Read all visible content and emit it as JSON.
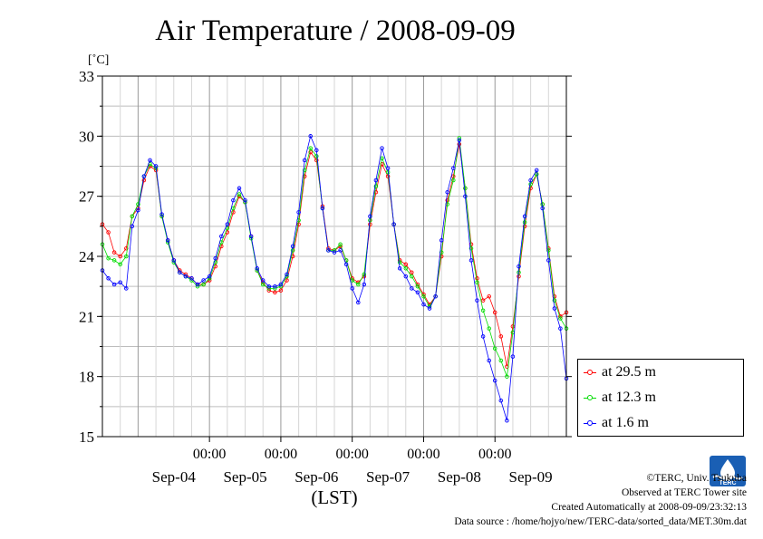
{
  "chart_data": {
    "type": "line",
    "title": "Air Temperature / 2008-09-09",
    "unit_label": "[˚C]",
    "xlabel": "(LST)",
    "ylim": [
      15,
      33
    ],
    "yticks": [
      "15",
      "18",
      "21",
      "24",
      "27",
      "30",
      "33"
    ],
    "x_range_days": [
      "2008-09-03 12:00",
      "2008-09-10 00:00"
    ],
    "x_time_ticks": [
      {
        "time": "2008-09-05 00:00",
        "label": "00:00"
      },
      {
        "time": "2008-09-06 00:00",
        "label": "00:00"
      },
      {
        "time": "2008-09-07 00:00",
        "label": "00:00"
      },
      {
        "time": "2008-09-08 00:00",
        "label": "00:00"
      },
      {
        "time": "2008-09-09 00:00",
        "label": "00:00"
      }
    ],
    "x_date_labels": [
      {
        "time": "2008-09-04 12:00",
        "label": "Sep-04"
      },
      {
        "time": "2008-09-05 12:00",
        "label": "Sep-05"
      },
      {
        "time": "2008-09-06 12:00",
        "label": "Sep-06"
      },
      {
        "time": "2008-09-07 12:00",
        "label": "Sep-07"
      },
      {
        "time": "2008-09-08 12:00",
        "label": "Sep-08"
      },
      {
        "time": "2008-09-09 12:00",
        "label": "Sep-09"
      }
    ],
    "grid": true,
    "legend_position": "bottom-right, outside plot",
    "series": [
      {
        "name": "at 29.5 m",
        "color": "#ff0000",
        "points": [
          [
            "2008-09-03 12:00",
            25.6
          ],
          [
            "2008-09-03 14:00",
            25.2
          ],
          [
            "2008-09-03 16:00",
            24.2
          ],
          [
            "2008-09-03 18:00",
            24.0
          ],
          [
            "2008-09-03 20:00",
            24.4
          ],
          [
            "2008-09-03 22:00",
            26.0
          ],
          [
            "2008-09-04 00:00",
            26.4
          ],
          [
            "2008-09-04 02:00",
            27.8
          ],
          [
            "2008-09-04 04:00",
            28.5
          ],
          [
            "2008-09-04 06:00",
            28.3
          ],
          [
            "2008-09-04 08:00",
            26.0
          ],
          [
            "2008-09-04 10:00",
            24.8
          ],
          [
            "2008-09-04 12:00",
            23.8
          ],
          [
            "2008-09-04 14:00",
            23.3
          ],
          [
            "2008-09-04 16:00",
            23.1
          ],
          [
            "2008-09-04 18:00",
            22.9
          ],
          [
            "2008-09-04 20:00",
            22.6
          ],
          [
            "2008-09-04 22:00",
            22.6
          ],
          [
            "2008-09-05 00:00",
            22.8
          ],
          [
            "2008-09-05 02:00",
            23.5
          ],
          [
            "2008-09-05 04:00",
            24.5
          ],
          [
            "2008-09-05 06:00",
            25.2
          ],
          [
            "2008-09-05 08:00",
            26.2
          ],
          [
            "2008-09-05 10:00",
            27.0
          ],
          [
            "2008-09-05 12:00",
            26.7
          ],
          [
            "2008-09-05 14:00",
            25.0
          ],
          [
            "2008-09-05 16:00",
            23.3
          ],
          [
            "2008-09-05 18:00",
            22.7
          ],
          [
            "2008-09-05 20:00",
            22.3
          ],
          [
            "2008-09-05 22:00",
            22.2
          ],
          [
            "2008-09-06 00:00",
            22.3
          ],
          [
            "2008-09-06 02:00",
            22.8
          ],
          [
            "2008-09-06 04:00",
            24.0
          ],
          [
            "2008-09-06 06:00",
            25.6
          ],
          [
            "2008-09-06 08:00",
            28.0
          ],
          [
            "2008-09-06 10:00",
            29.2
          ],
          [
            "2008-09-06 12:00",
            28.8
          ],
          [
            "2008-09-06 14:00",
            26.5
          ],
          [
            "2008-09-06 16:00",
            24.4
          ],
          [
            "2008-09-06 18:00",
            24.3
          ],
          [
            "2008-09-06 20:00",
            24.5
          ],
          [
            "2008-09-06 22:00",
            23.8
          ],
          [
            "2008-09-07 00:00",
            22.9
          ],
          [
            "2008-09-07 02:00",
            22.7
          ],
          [
            "2008-09-07 04:00",
            23.0
          ],
          [
            "2008-09-07 06:00",
            25.6
          ],
          [
            "2008-09-07 08:00",
            27.2
          ],
          [
            "2008-09-07 10:00",
            28.6
          ],
          [
            "2008-09-07 12:00",
            28.0
          ],
          [
            "2008-09-07 14:00",
            25.6
          ],
          [
            "2008-09-07 16:00",
            23.8
          ],
          [
            "2008-09-07 18:00",
            23.6
          ],
          [
            "2008-09-07 20:00",
            23.2
          ],
          [
            "2008-09-07 22:00",
            22.6
          ],
          [
            "2008-09-08 00:00",
            22.1
          ],
          [
            "2008-09-08 02:00",
            21.6
          ],
          [
            "2008-09-08 04:00",
            22.0
          ],
          [
            "2008-09-08 06:00",
            24.0
          ],
          [
            "2008-09-08 08:00",
            26.8
          ],
          [
            "2008-09-08 10:00",
            28.0
          ],
          [
            "2008-09-08 12:00",
            29.6
          ],
          [
            "2008-09-08 14:00",
            27.4
          ],
          [
            "2008-09-08 16:00",
            24.6
          ],
          [
            "2008-09-08 18:00",
            22.9
          ],
          [
            "2008-09-08 20:00",
            21.8
          ],
          [
            "2008-09-08 22:00",
            22.0
          ],
          [
            "2008-09-09 00:00",
            21.2
          ],
          [
            "2008-09-09 02:00",
            20.0
          ],
          [
            "2008-09-09 04:00",
            18.5
          ],
          [
            "2008-09-09 06:00",
            20.5
          ],
          [
            "2008-09-09 08:00",
            23.0
          ],
          [
            "2008-09-09 10:00",
            25.5
          ],
          [
            "2008-09-09 12:00",
            27.4
          ],
          [
            "2008-09-09 14:00",
            28.1
          ],
          [
            "2008-09-09 16:00",
            26.6
          ],
          [
            "2008-09-09 18:00",
            24.4
          ],
          [
            "2008-09-09 20:00",
            22.0
          ],
          [
            "2008-09-09 22:00",
            21.0
          ],
          [
            "2008-09-10 00:00",
            21.2
          ]
        ]
      },
      {
        "name": "at 12.3 m",
        "color": "#00dd00",
        "points": [
          [
            "2008-09-03 12:00",
            24.6
          ],
          [
            "2008-09-03 14:00",
            23.9
          ],
          [
            "2008-09-03 16:00",
            23.8
          ],
          [
            "2008-09-03 18:00",
            23.6
          ],
          [
            "2008-09-03 20:00",
            24.0
          ],
          [
            "2008-09-03 22:00",
            26.0
          ],
          [
            "2008-09-04 00:00",
            26.6
          ],
          [
            "2008-09-04 02:00",
            28.0
          ],
          [
            "2008-09-04 04:00",
            28.6
          ],
          [
            "2008-09-04 06:00",
            28.4
          ],
          [
            "2008-09-04 08:00",
            26.0
          ],
          [
            "2008-09-04 10:00",
            24.7
          ],
          [
            "2008-09-04 12:00",
            23.7
          ],
          [
            "2008-09-04 14:00",
            23.2
          ],
          [
            "2008-09-04 16:00",
            23.0
          ],
          [
            "2008-09-04 18:00",
            22.8
          ],
          [
            "2008-09-04 20:00",
            22.5
          ],
          [
            "2008-09-04 22:00",
            22.6
          ],
          [
            "2008-09-05 00:00",
            22.9
          ],
          [
            "2008-09-05 02:00",
            23.7
          ],
          [
            "2008-09-05 04:00",
            24.7
          ],
          [
            "2008-09-05 06:00",
            25.4
          ],
          [
            "2008-09-05 08:00",
            26.4
          ],
          [
            "2008-09-05 10:00",
            27.1
          ],
          [
            "2008-09-05 12:00",
            26.7
          ],
          [
            "2008-09-05 14:00",
            24.9
          ],
          [
            "2008-09-05 16:00",
            23.3
          ],
          [
            "2008-09-05 18:00",
            22.6
          ],
          [
            "2008-09-05 20:00",
            22.4
          ],
          [
            "2008-09-05 22:00",
            22.4
          ],
          [
            "2008-09-06 00:00",
            22.5
          ],
          [
            "2008-09-06 02:00",
            23.0
          ],
          [
            "2008-09-06 04:00",
            24.3
          ],
          [
            "2008-09-06 06:00",
            25.8
          ],
          [
            "2008-09-06 08:00",
            28.3
          ],
          [
            "2008-09-06 10:00",
            29.4
          ],
          [
            "2008-09-06 12:00",
            29.0
          ],
          [
            "2008-09-06 14:00",
            26.4
          ],
          [
            "2008-09-06 16:00",
            24.3
          ],
          [
            "2008-09-06 18:00",
            24.3
          ],
          [
            "2008-09-06 20:00",
            24.6
          ],
          [
            "2008-09-06 22:00",
            23.8
          ],
          [
            "2008-09-07 00:00",
            22.8
          ],
          [
            "2008-09-07 02:00",
            22.6
          ],
          [
            "2008-09-07 04:00",
            23.1
          ],
          [
            "2008-09-07 06:00",
            25.8
          ],
          [
            "2008-09-07 08:00",
            27.5
          ],
          [
            "2008-09-07 10:00",
            28.9
          ],
          [
            "2008-09-07 12:00",
            28.2
          ],
          [
            "2008-09-07 14:00",
            25.6
          ],
          [
            "2008-09-07 16:00",
            23.7
          ],
          [
            "2008-09-07 18:00",
            23.4
          ],
          [
            "2008-09-07 20:00",
            23.0
          ],
          [
            "2008-09-07 22:00",
            22.5
          ],
          [
            "2008-09-08 00:00",
            22.0
          ],
          [
            "2008-09-08 02:00",
            21.5
          ],
          [
            "2008-09-08 04:00",
            22.0
          ],
          [
            "2008-09-08 06:00",
            24.2
          ],
          [
            "2008-09-08 08:00",
            26.6
          ],
          [
            "2008-09-08 10:00",
            27.8
          ],
          [
            "2008-09-08 12:00",
            29.9
          ],
          [
            "2008-09-08 14:00",
            27.4
          ],
          [
            "2008-09-08 16:00",
            24.4
          ],
          [
            "2008-09-08 18:00",
            22.7
          ],
          [
            "2008-09-08 20:00",
            21.3
          ],
          [
            "2008-09-08 22:00",
            20.4
          ],
          [
            "2008-09-09 00:00",
            19.4
          ],
          [
            "2008-09-09 02:00",
            18.8
          ],
          [
            "2008-09-09 04:00",
            18.0
          ],
          [
            "2008-09-09 06:00",
            20.2
          ],
          [
            "2008-09-09 08:00",
            23.2
          ],
          [
            "2008-09-09 10:00",
            25.7
          ],
          [
            "2008-09-09 12:00",
            27.6
          ],
          [
            "2008-09-09 14:00",
            28.1
          ],
          [
            "2008-09-09 16:00",
            26.6
          ],
          [
            "2008-09-09 18:00",
            24.3
          ],
          [
            "2008-09-09 20:00",
            21.8
          ],
          [
            "2008-09-09 22:00",
            20.9
          ],
          [
            "2008-09-10 00:00",
            20.4
          ]
        ]
      },
      {
        "name": "at 1.6 m",
        "color": "#0000ff",
        "points": [
          [
            "2008-09-03 12:00",
            23.3
          ],
          [
            "2008-09-03 14:00",
            22.9
          ],
          [
            "2008-09-03 16:00",
            22.6
          ],
          [
            "2008-09-03 18:00",
            22.7
          ],
          [
            "2008-09-03 20:00",
            22.4
          ],
          [
            "2008-09-03 22:00",
            25.5
          ],
          [
            "2008-09-04 00:00",
            26.3
          ],
          [
            "2008-09-04 02:00",
            28.0
          ],
          [
            "2008-09-04 04:00",
            28.8
          ],
          [
            "2008-09-04 06:00",
            28.5
          ],
          [
            "2008-09-04 08:00",
            26.1
          ],
          [
            "2008-09-04 10:00",
            24.8
          ],
          [
            "2008-09-04 12:00",
            23.8
          ],
          [
            "2008-09-04 14:00",
            23.2
          ],
          [
            "2008-09-04 16:00",
            23.0
          ],
          [
            "2008-09-04 18:00",
            22.9
          ],
          [
            "2008-09-04 20:00",
            22.6
          ],
          [
            "2008-09-04 22:00",
            22.8
          ],
          [
            "2008-09-05 00:00",
            23.0
          ],
          [
            "2008-09-05 02:00",
            23.9
          ],
          [
            "2008-09-05 04:00",
            25.0
          ],
          [
            "2008-09-05 06:00",
            25.6
          ],
          [
            "2008-09-05 08:00",
            26.8
          ],
          [
            "2008-09-05 10:00",
            27.4
          ],
          [
            "2008-09-05 12:00",
            26.8
          ],
          [
            "2008-09-05 14:00",
            25.0
          ],
          [
            "2008-09-05 16:00",
            23.4
          ],
          [
            "2008-09-05 18:00",
            22.8
          ],
          [
            "2008-09-05 20:00",
            22.5
          ],
          [
            "2008-09-05 22:00",
            22.5
          ],
          [
            "2008-09-06 00:00",
            22.6
          ],
          [
            "2008-09-06 02:00",
            23.1
          ],
          [
            "2008-09-06 04:00",
            24.5
          ],
          [
            "2008-09-06 06:00",
            26.2
          ],
          [
            "2008-09-06 08:00",
            28.8
          ],
          [
            "2008-09-06 10:00",
            30.0
          ],
          [
            "2008-09-06 12:00",
            29.3
          ],
          [
            "2008-09-06 14:00",
            26.4
          ],
          [
            "2008-09-06 16:00",
            24.3
          ],
          [
            "2008-09-06 18:00",
            24.2
          ],
          [
            "2008-09-06 20:00",
            24.3
          ],
          [
            "2008-09-06 22:00",
            23.6
          ],
          [
            "2008-09-07 00:00",
            22.4
          ],
          [
            "2008-09-07 02:00",
            21.7
          ],
          [
            "2008-09-07 04:00",
            22.6
          ],
          [
            "2008-09-07 06:00",
            26.0
          ],
          [
            "2008-09-07 08:00",
            27.8
          ],
          [
            "2008-09-07 10:00",
            29.4
          ],
          [
            "2008-09-07 12:00",
            28.4
          ],
          [
            "2008-09-07 14:00",
            25.6
          ],
          [
            "2008-09-07 16:00",
            23.4
          ],
          [
            "2008-09-07 18:00",
            23.0
          ],
          [
            "2008-09-07 20:00",
            22.4
          ],
          [
            "2008-09-07 22:00",
            22.2
          ],
          [
            "2008-09-08 00:00",
            21.6
          ],
          [
            "2008-09-08 02:00",
            21.4
          ],
          [
            "2008-09-08 04:00",
            22.0
          ],
          [
            "2008-09-08 06:00",
            24.8
          ],
          [
            "2008-09-08 08:00",
            27.2
          ],
          [
            "2008-09-08 10:00",
            28.4
          ],
          [
            "2008-09-08 12:00",
            29.8
          ],
          [
            "2008-09-08 14:00",
            27.0
          ],
          [
            "2008-09-08 16:00",
            23.8
          ],
          [
            "2008-09-08 18:00",
            21.8
          ],
          [
            "2008-09-08 20:00",
            20.0
          ],
          [
            "2008-09-08 22:00",
            18.8
          ],
          [
            "2008-09-09 00:00",
            17.8
          ],
          [
            "2008-09-09 02:00",
            16.8
          ],
          [
            "2008-09-09 04:00",
            15.8
          ],
          [
            "2008-09-09 06:00",
            19.0
          ],
          [
            "2008-09-09 08:00",
            23.5
          ],
          [
            "2008-09-09 10:00",
            26.0
          ],
          [
            "2008-09-09 12:00",
            27.8
          ],
          [
            "2008-09-09 14:00",
            28.3
          ],
          [
            "2008-09-09 16:00",
            26.4
          ],
          [
            "2008-09-09 18:00",
            23.8
          ],
          [
            "2008-09-09 20:00",
            21.4
          ],
          [
            "2008-09-09 22:00",
            20.4
          ],
          [
            "2008-09-10 00:00",
            17.9
          ]
        ]
      }
    ]
  },
  "credits": {
    "copyright": "©TERC, Univ. Tsukuba",
    "site": "Observed at TERC Tower site",
    "created": "Created Automatically at 2008-09-09/23:32:13",
    "source": "Data source : /home/hojyo/new/TERC-data/sorted_data/MET.30m.dat"
  },
  "logo": {
    "text": "TERC",
    "color": "#1a5fb4"
  }
}
